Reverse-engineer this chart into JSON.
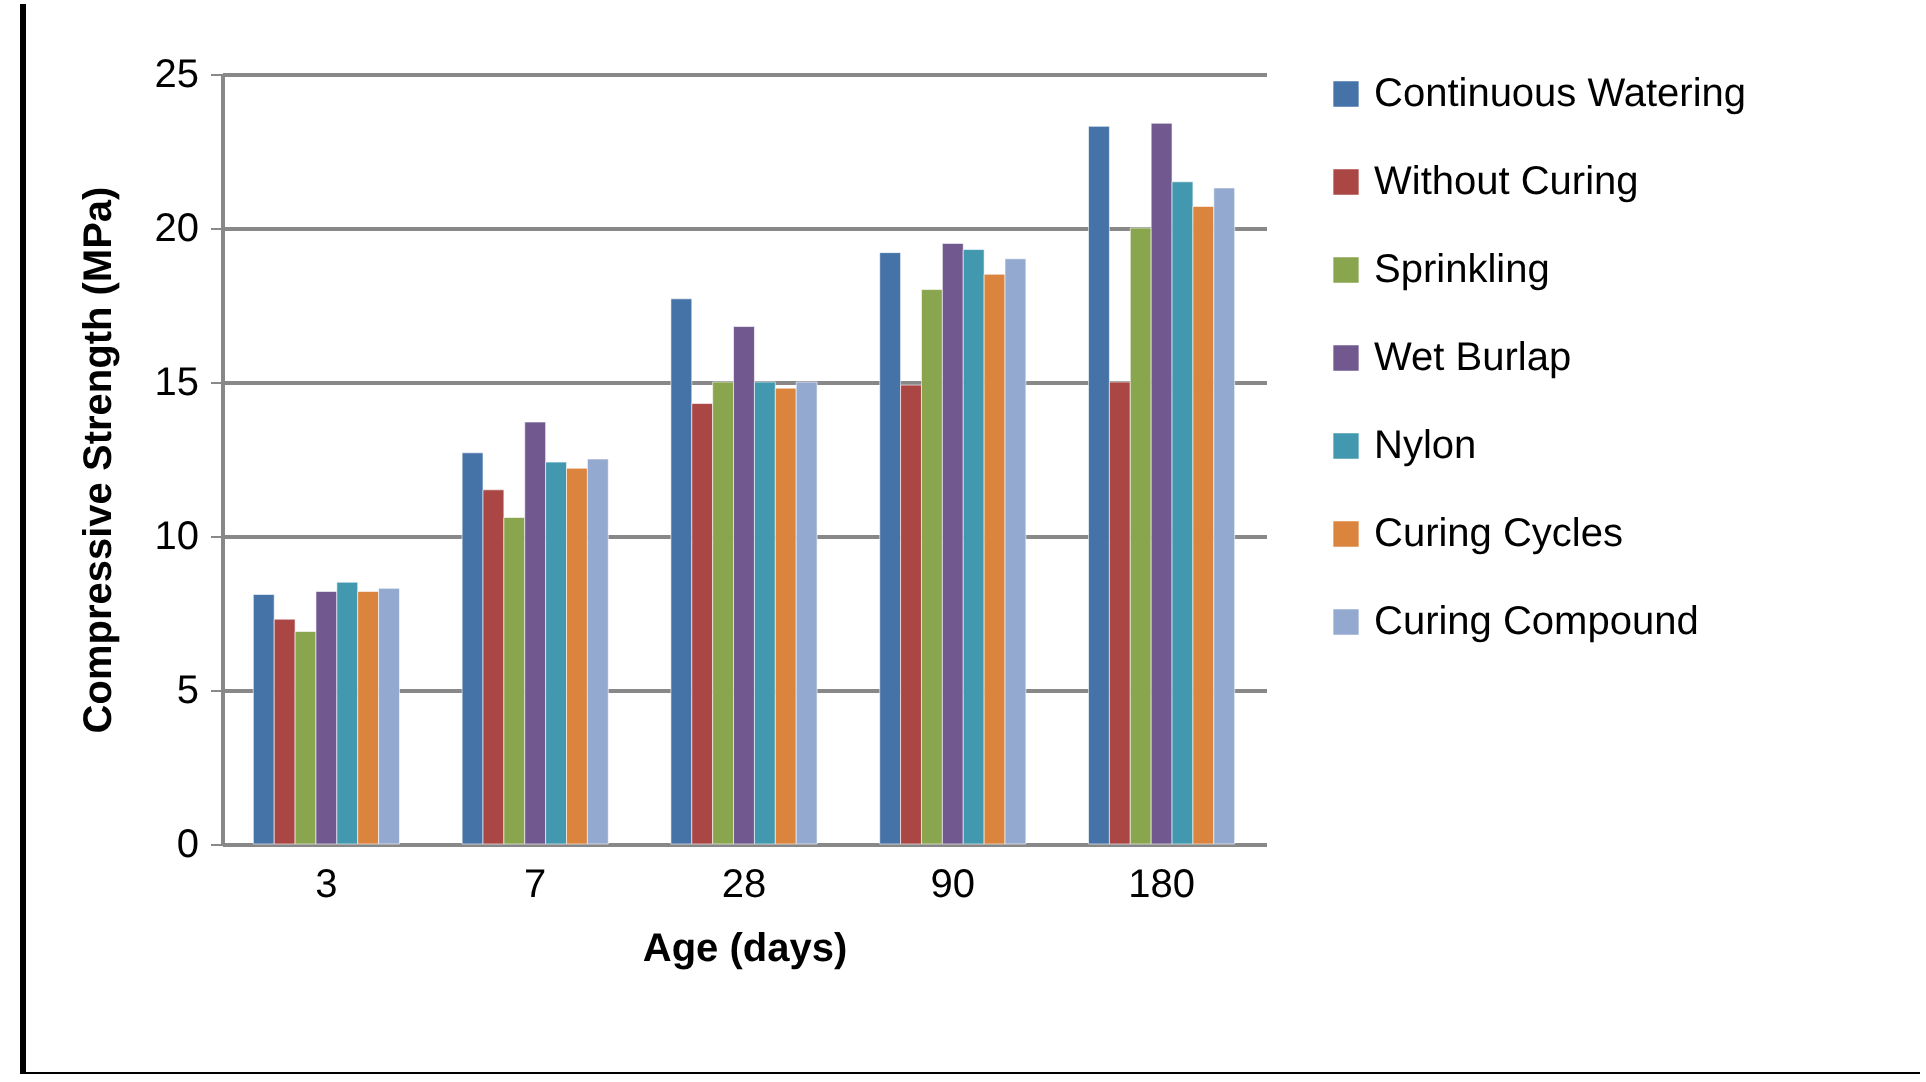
{
  "chart_data": {
    "type": "bar",
    "xlabel": "Age (days)",
    "ylabel": "Compressive Strength (MPa)",
    "categories": [
      "3",
      "7",
      "28",
      "90",
      "180"
    ],
    "series": [
      {
        "name": "Continuous Watering",
        "color": "#4572a7",
        "values": [
          8.1,
          12.7,
          17.7,
          19.2,
          23.3
        ]
      },
      {
        "name": "Without Curing",
        "color": "#aa4643",
        "values": [
          7.3,
          11.5,
          14.3,
          14.9,
          15.0
        ]
      },
      {
        "name": "Sprinkling",
        "color": "#89a54e",
        "values": [
          6.9,
          10.6,
          15.0,
          18.0,
          20.0
        ]
      },
      {
        "name": "Wet Burlap",
        "color": "#71588f",
        "values": [
          8.2,
          13.7,
          16.8,
          19.5,
          23.4
        ]
      },
      {
        "name": "Nylon",
        "color": "#4198af",
        "values": [
          8.5,
          12.4,
          15.0,
          19.3,
          21.5
        ]
      },
      {
        "name": "Curing Cycles",
        "color": "#db843d",
        "values": [
          8.2,
          12.2,
          14.8,
          18.5,
          20.7
        ]
      },
      {
        "name": "Curing Compound",
        "color": "#93a9cf",
        "values": [
          8.3,
          12.5,
          15.0,
          19.0,
          21.3
        ]
      }
    ],
    "ylim": [
      0,
      25
    ],
    "yticks": [
      0,
      5,
      10,
      15,
      20,
      25
    ],
    "grid": "y",
    "legend": "right"
  }
}
